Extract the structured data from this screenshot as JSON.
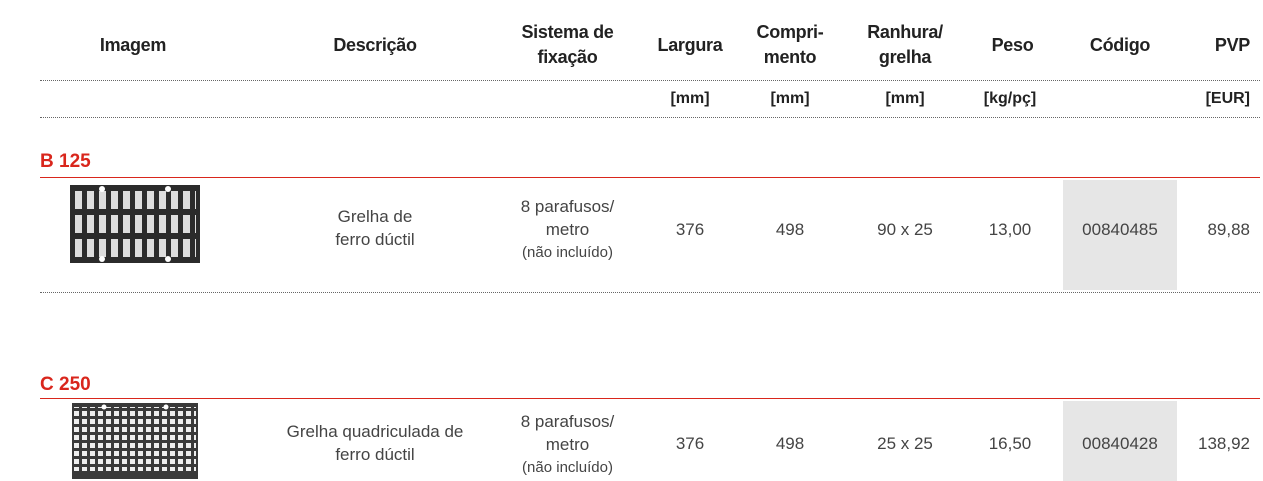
{
  "header": {
    "columns": [
      [
        "Imagem"
      ],
      [
        "Descrição"
      ],
      [
        "Sistema de",
        "fixação"
      ],
      [
        "Largura"
      ],
      [
        "Compri-",
        "mento"
      ],
      [
        "Ranhura/",
        "grelha"
      ],
      [
        "Peso"
      ],
      [
        "Código"
      ],
      [
        "PVP"
      ]
    ],
    "units": [
      "[mm]",
      "[mm]",
      "[mm]",
      "[kg/pç]",
      "[EUR]"
    ]
  },
  "sections": [
    {
      "label": "B 125",
      "rows": [
        {
          "description": [
            "Grelha de",
            "ferro dúctil"
          ],
          "fixing": [
            "8 parafusos/",
            "metro",
            "(não incluído)"
          ],
          "width": "376",
          "length": "498",
          "slot": "90 x 25",
          "weight": "13,00",
          "code": "00840485",
          "price": "89,88"
        }
      ]
    },
    {
      "label": "C 250",
      "rows": [
        {
          "description": [
            "Grelha quadriculada de",
            "ferro dúctil"
          ],
          "fixing": [
            "8 parafusos/",
            "metro",
            "(não incluído)"
          ],
          "width": "376",
          "length": "498",
          "slot": "25 x 25",
          "weight": "16,50",
          "code": "00840428",
          "price": "138,92"
        }
      ]
    }
  ]
}
